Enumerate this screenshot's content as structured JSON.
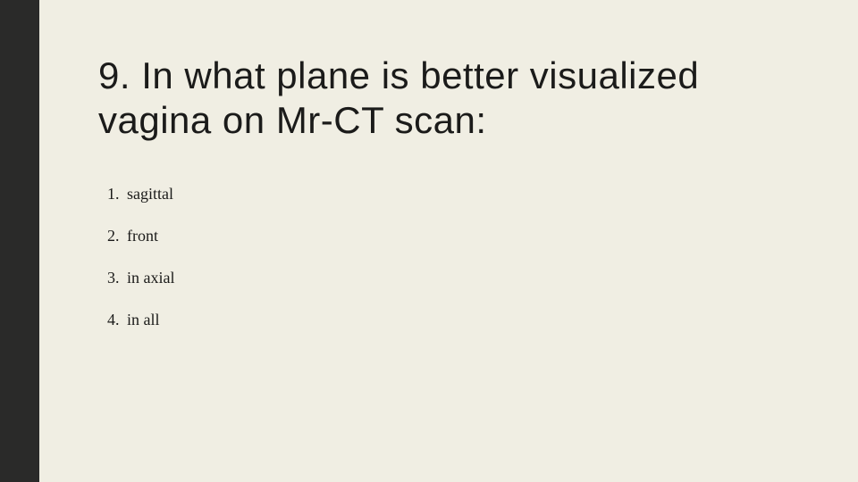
{
  "slide": {
    "background_color": "#f0eee3",
    "accent_color": "#2a2a29",
    "title_color": "#1b1b1a",
    "text_color": "#1b1b1a",
    "title": "9. In what plane is better visualized vagina on Mr-CT scan:",
    "title_fontsize": 42,
    "option_fontsize": 18,
    "options": [
      "sagittal",
      "front",
      "in axial",
      "in all"
    ]
  }
}
